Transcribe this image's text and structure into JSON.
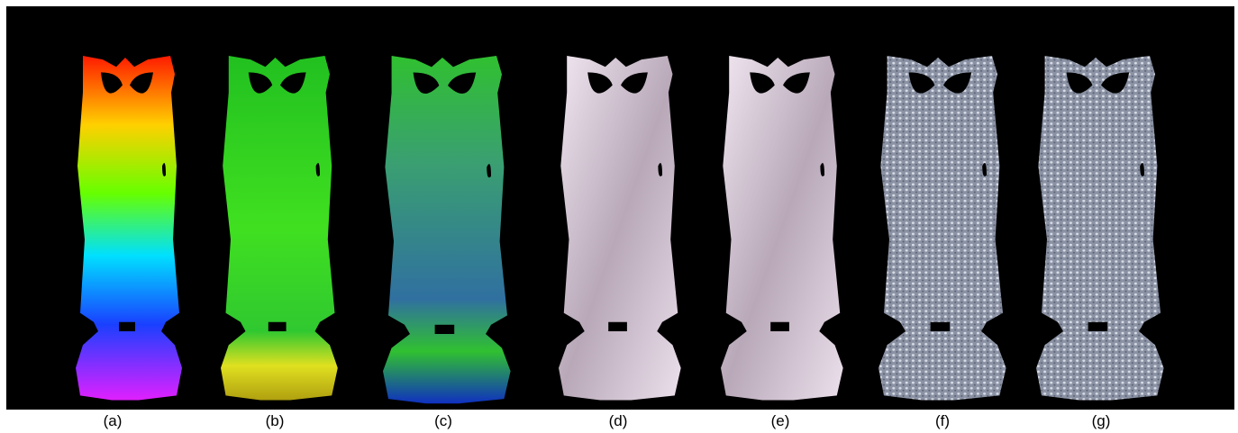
{
  "panels": [
    {
      "label": "(a)"
    },
    {
      "label": "(b)"
    },
    {
      "label": "(c)"
    },
    {
      "label": "(d)"
    },
    {
      "label": "(e)"
    },
    {
      "label": "(f)"
    },
    {
      "label": "(g)"
    }
  ]
}
